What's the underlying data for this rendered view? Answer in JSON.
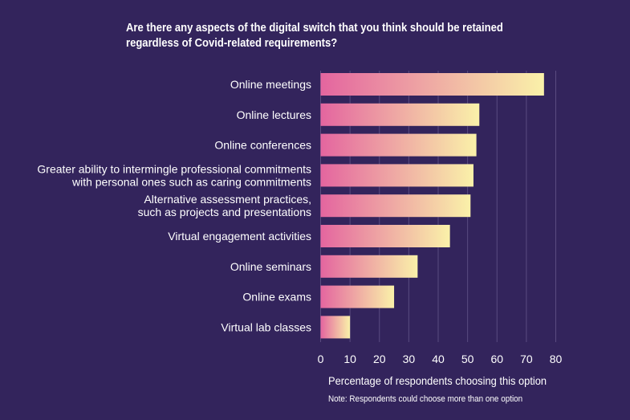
{
  "chart_data": {
    "type": "bar",
    "orientation": "horizontal",
    "title": "Are there any aspects of the digital switch that you think should be retained regardless of Covid-related requirements?",
    "categories": [
      "Online meetings",
      "Online lectures",
      "Online conferences",
      "Greater ability to intermingle professional commitments\nwith personal ones such as caring commitments",
      "Alternative assessment practices,\nsuch as projects and presentations",
      "Virtual engagement activities",
      "Online seminars",
      "Online exams",
      "Virtual lab classes"
    ],
    "values": [
      76,
      54,
      53,
      52,
      51,
      44,
      33,
      25,
      10
    ],
    "xlabel": "Percentage of respondents choosing this option",
    "ylabel": "",
    "xlim": [
      0,
      80
    ],
    "xticks": [
      0,
      10,
      20,
      30,
      40,
      50,
      60,
      70,
      80
    ],
    "grid": true,
    "note": "Note: Respondents could choose more than one option",
    "colors": {
      "background": "#33245c",
      "bar_start": "#e4659f",
      "bar_end": "#faf1a9",
      "grid": "#5a4b80"
    }
  }
}
